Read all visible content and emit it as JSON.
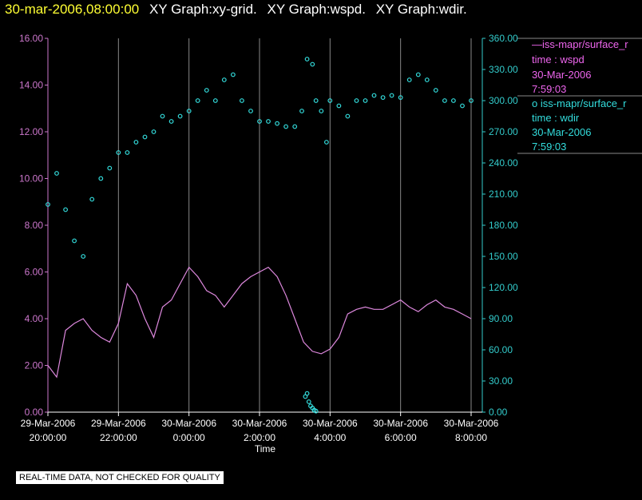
{
  "title": {
    "date": "30-mar-2006,08:00:00",
    "graphs": [
      "XY Graph:xy-grid.",
      "XY Graph:wspd.",
      "XY Graph:wdir."
    ]
  },
  "colors": {
    "wspd": "#dd88dd",
    "wdir": "#33dddd",
    "axis_left": "#cc77cc",
    "axis_right": "#33cccc",
    "grid": "#888888"
  },
  "legend": {
    "wspd": [
      "—iss-mapr/surface_r",
      "time : wspd",
      "30-Mar-2006",
      "7:59:03"
    ],
    "wdir": [
      "o  iss-mapr/surface_r",
      "time : wdir",
      "30-Mar-2006",
      "7:59:03"
    ]
  },
  "footer_note": "REAL-TIME DATA, NOT CHECKED FOR QUALITY",
  "chart_data": {
    "type": "line",
    "xlabel": "Time",
    "x_ticks": [
      {
        "hours": 0,
        "line1": "29-Mar-2006",
        "line2": "20:00:00"
      },
      {
        "hours": 2,
        "line1": "29-Mar-2006",
        "line2": "22:00:00"
      },
      {
        "hours": 4,
        "line1": "30-Mar-2006",
        "line2": "0:00:00"
      },
      {
        "hours": 6,
        "line1": "30-Mar-2006",
        "line2": "2:00:00"
      },
      {
        "hours": 8,
        "line1": "30-Mar-2006",
        "line2": "4:00:00"
      },
      {
        "hours": 10,
        "line1": "30-Mar-2006",
        "line2": "6:00:00"
      },
      {
        "hours": 12,
        "line1": "30-Mar-2006",
        "line2": "8:00:00"
      }
    ],
    "y_left": {
      "ylim": [
        0,
        16
      ],
      "ticks": [
        "0.00",
        "2.00",
        "4.00",
        "6.00",
        "8.00",
        "10.00",
        "12.00",
        "14.00",
        "16.00"
      ]
    },
    "y_right": {
      "ylim": [
        0,
        360
      ],
      "ticks": [
        "0.00",
        "30.00",
        "60.00",
        "90.00",
        "120.00",
        "150.00",
        "180.00",
        "210.00",
        "240.00",
        "270.00",
        "300.00",
        "330.00",
        "360.00"
      ]
    },
    "series": [
      {
        "type": "line",
        "axis": "left",
        "x": [
          0.0,
          0.25,
          0.5,
          0.75,
          1.0,
          1.25,
          1.5,
          1.75,
          2.0,
          2.25,
          2.5,
          2.75,
          3.0,
          3.25,
          3.5,
          3.75,
          4.0,
          4.25,
          4.5,
          4.75,
          5.0,
          5.25,
          5.5,
          5.75,
          6.0,
          6.25,
          6.5,
          6.75,
          7.0,
          7.25,
          7.5,
          7.75,
          8.0,
          8.25,
          8.5,
          8.75,
          9.0,
          9.25,
          9.5,
          9.75,
          10.0,
          10.25,
          10.5,
          10.75,
          11.0,
          11.25,
          11.5,
          11.75,
          12.0
        ],
        "values": [
          2.0,
          1.5,
          3.5,
          3.8,
          4.0,
          3.5,
          3.2,
          3.0,
          3.8,
          5.5,
          5.0,
          4.0,
          3.2,
          4.5,
          4.8,
          5.5,
          6.2,
          5.8,
          5.2,
          5.0,
          4.5,
          5.0,
          5.5,
          5.8,
          6.0,
          6.2,
          5.8,
          5.0,
          4.0,
          3.0,
          2.6,
          2.5,
          2.7,
          3.2,
          4.2,
          4.4,
          4.5,
          4.4,
          4.4,
          4.6,
          4.8,
          4.5,
          4.3,
          4.6,
          4.8,
          4.5,
          4.4,
          4.2,
          4.0
        ]
      },
      {
        "type": "scatter",
        "axis": "right",
        "x": [
          0.0,
          0.25,
          0.5,
          0.75,
          1.0,
          1.25,
          1.5,
          1.75,
          2.0,
          2.25,
          2.5,
          2.75,
          3.0,
          3.25,
          3.5,
          3.75,
          4.0,
          4.25,
          4.5,
          4.75,
          5.0,
          5.25,
          5.5,
          5.75,
          6.0,
          6.25,
          6.5,
          6.75,
          7.0,
          7.2,
          7.35,
          7.5,
          7.6,
          7.75,
          7.9,
          8.0,
          8.25,
          8.5,
          8.75,
          9.0,
          9.25,
          9.5,
          9.75,
          10.0,
          10.25,
          10.5,
          10.75,
          11.0,
          11.25,
          11.5,
          11.75,
          12.0
        ],
        "values": [
          200,
          230,
          195,
          165,
          150,
          205,
          225,
          235,
          250,
          250,
          260,
          265,
          270,
          285,
          280,
          285,
          290,
          300,
          310,
          300,
          320,
          325,
          300,
          290,
          280,
          280,
          278,
          275,
          275,
          290,
          340,
          335,
          300,
          290,
          260,
          300,
          295,
          285,
          300,
          300,
          305,
          303,
          305,
          303,
          320,
          325,
          320,
          310,
          300,
          300,
          295,
          300
        ]
      },
      {
        "type": "scatter",
        "axis": "right",
        "x": [
          7.3,
          7.35,
          7.4,
          7.45,
          7.5,
          7.55,
          7.6
        ],
        "values": [
          15,
          18,
          10,
          6,
          4,
          2,
          1
        ]
      }
    ]
  }
}
